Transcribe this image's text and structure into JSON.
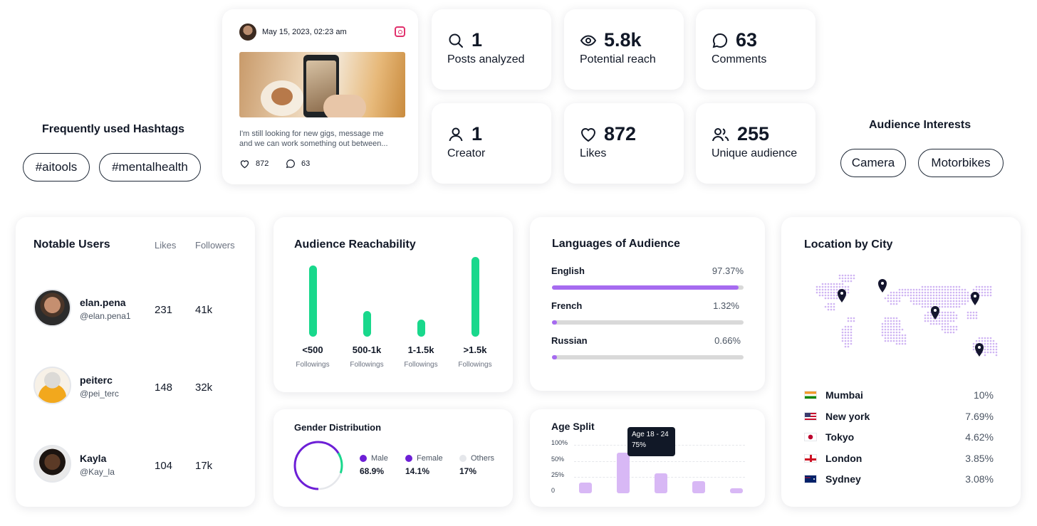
{
  "hashtags": {
    "title": "Frequently used Hashtags",
    "tags": [
      "#aitools",
      "#mentalhealth"
    ]
  },
  "post": {
    "date": "May 15, 2023, 02:23 am",
    "text_line1": "I'm still looking for new gigs, message me",
    "text_line2": "and we can work something out between...",
    "likes": "872",
    "comments": "63"
  },
  "stats": [
    {
      "value": "1",
      "label": "Posts analyzed",
      "icon": "search-icon"
    },
    {
      "value": "5.8k",
      "label": "Potential reach",
      "icon": "eye-icon"
    },
    {
      "value": "63",
      "label": "Comments",
      "icon": "comment-icon"
    },
    {
      "value": "1",
      "label": "Creator",
      "icon": "user-icon"
    },
    {
      "value": "872",
      "label": "Likes",
      "icon": "heart-icon"
    },
    {
      "value": "255",
      "label": "Unique audience",
      "icon": "users-icon"
    }
  ],
  "interests": {
    "title": "Audience Interests",
    "items": [
      "Camera",
      "Motorbikes"
    ]
  },
  "notable_users": {
    "title": "Notable Users",
    "col_likes": "Likes",
    "col_followers": "Followers",
    "users": [
      {
        "name": "elan.pena",
        "handle": "@elan.pena1",
        "likes": "231",
        "followers": "41k"
      },
      {
        "name": "peiterc",
        "handle": "@pei_terc",
        "likes": "148",
        "followers": "32k"
      },
      {
        "name": "Kayla",
        "handle": "@Kay_la",
        "likes": "104",
        "followers": "17k"
      }
    ]
  },
  "reachability": {
    "title": "Audience Reachability",
    "sublabel": "Followings",
    "color": "#19d88c",
    "groups": [
      {
        "label": "<500",
        "value": 100
      },
      {
        "label": "500-1k",
        "value": 36
      },
      {
        "label": "1-1.5k",
        "value": 24
      },
      {
        "label": ">1.5k",
        "value": 112
      }
    ]
  },
  "languages": {
    "title": "Languages of Audience",
    "items": [
      {
        "name": "English",
        "pct": "97.37%",
        "value": 97.37
      },
      {
        "name": "French",
        "pct": "1.32%",
        "value": 1.32
      },
      {
        "name": "Russian",
        "pct": "0.66%",
        "value": 0.66
      }
    ]
  },
  "location": {
    "title": "Location by City",
    "cities": [
      {
        "name": "Mumbai",
        "pct": "10%",
        "flag": "india"
      },
      {
        "name": "New york",
        "pct": "7.69%",
        "flag": "usa"
      },
      {
        "name": "Tokyo",
        "pct": "4.62%",
        "flag": "japan"
      },
      {
        "name": "London",
        "pct": "3.85%",
        "flag": "england"
      },
      {
        "name": "Sydney",
        "pct": "3.08%",
        "flag": "australia"
      }
    ]
  },
  "gender": {
    "title": "Gender Distribution",
    "items": [
      {
        "label": "Male",
        "pct": "68.9%",
        "color": "#6d1fd6",
        "value": 68.9
      },
      {
        "label": "Female",
        "pct": "14.1%",
        "color": "#19d88c",
        "value": 14.1
      },
      {
        "label": "Others",
        "pct": "17%",
        "color": "#e5e7eb",
        "value": 17
      }
    ]
  },
  "age": {
    "title": "Age Split",
    "tooltip_title": "Age 18 - 24",
    "tooltip_value": "75%",
    "y_ticks": [
      "100%",
      "50%",
      "25%",
      "0"
    ],
    "bars": [
      20,
      75,
      37,
      23,
      8
    ]
  }
}
